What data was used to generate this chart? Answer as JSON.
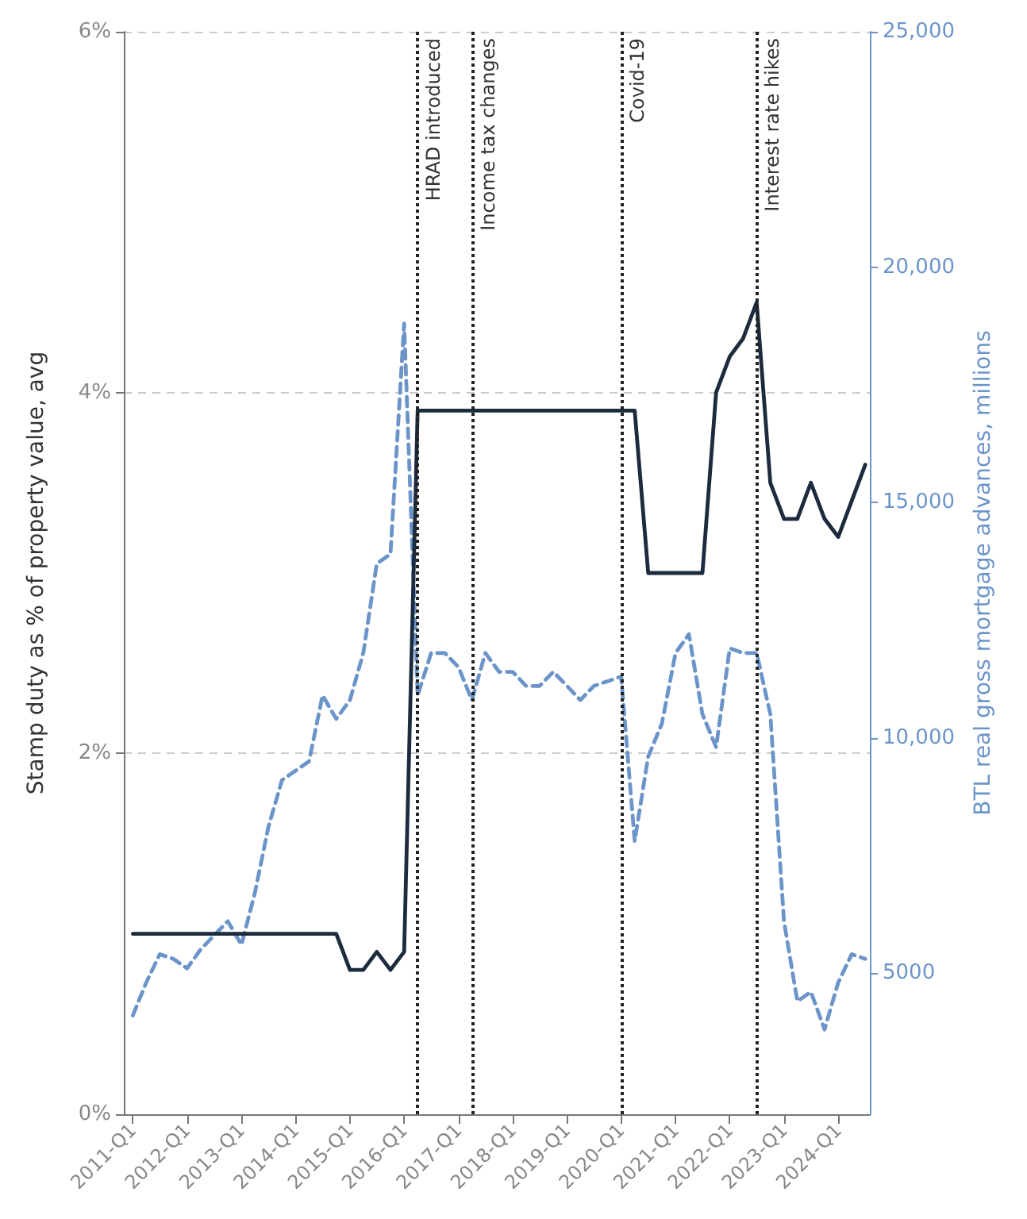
{
  "chart_data": {
    "type": "line",
    "ylabel": "Stamp duty as % of property value, avg",
    "y2label": "BTL real gross mortgage advances, millions",
    "x": [
      "2011-01",
      "2011-04",
      "2011-07",
      "2011-10",
      "2012-01",
      "2012-04",
      "2012-07",
      "2012-10",
      "2013-01",
      "2013-04",
      "2013-07",
      "2013-10",
      "2014-01",
      "2014-04",
      "2014-07",
      "2014-10",
      "2015-01",
      "2015-04",
      "2015-07",
      "2015-10",
      "2016-01",
      "2016-04",
      "2016-07",
      "2016-10",
      "2017-01",
      "2017-04",
      "2017-07",
      "2017-10",
      "2018-01",
      "2018-04",
      "2018-07",
      "2018-10",
      "2019-01",
      "2019-04",
      "2019-07",
      "2019-10",
      "2020-01",
      "2020-04",
      "2020-07",
      "2020-10",
      "2021-01",
      "2021-04",
      "2021-07",
      "2021-10",
      "2022-01",
      "2022-04",
      "2022-07",
      "2022-10",
      "2023-01",
      "2023-04",
      "2023-07",
      "2023-10",
      "2024-01",
      "2024-04",
      "2024-07"
    ],
    "series": [
      {
        "color": "#1c2b3d",
        "line_style": "solid",
        "values": [
          1.0,
          1.0,
          1.0,
          1.0,
          1.0,
          1.0,
          1.0,
          1.0,
          1.0,
          1.0,
          1.0,
          1.0,
          1.0,
          1.0,
          1.0,
          1.0,
          0.8,
          0.8,
          0.9,
          0.8,
          0.9,
          3.9,
          3.9,
          3.9,
          3.9,
          3.9,
          3.9,
          3.9,
          3.9,
          3.9,
          3.9,
          3.9,
          3.9,
          3.9,
          3.9,
          3.9,
          3.9,
          3.9,
          3.0,
          3.0,
          3.0,
          3.0,
          3.0,
          4.0,
          4.2,
          4.3,
          4.5,
          3.5,
          3.3,
          3.3,
          3.5,
          3.3,
          3.2,
          3.4,
          3.6
        ]
      },
      {
        "color": "#6b94c9",
        "line_style": "dashed",
        "axis": "y2",
        "values": [
          4100,
          4800,
          5400,
          5300,
          5100,
          5500,
          5800,
          6100,
          5600,
          6700,
          8100,
          9100,
          9300,
          9500,
          10900,
          10400,
          10800,
          11800,
          13700,
          13900,
          18800,
          10900,
          11800,
          11800,
          11500,
          10800,
          11800,
          11400,
          11400,
          11100,
          11100,
          11400,
          11100,
          10800,
          11100,
          11200,
          11300,
          7800,
          9600,
          10300,
          11800,
          12200,
          10500,
          9800,
          11900,
          11800,
          11800,
          10500,
          6100,
          4400,
          4600,
          3800,
          4800,
          5400,
          5300
        ]
      }
    ],
    "xlim": [
      "2010-11",
      "2024-08"
    ],
    "xticks": [
      {
        "value": "2011-01",
        "label": "2011-Q1"
      },
      {
        "value": "2012-01",
        "label": "2012-Q1"
      },
      {
        "value": "2013-01",
        "label": "2013-Q1"
      },
      {
        "value": "2014-01",
        "label": "2014-Q1"
      },
      {
        "value": "2015-01",
        "label": "2015-Q1"
      },
      {
        "value": "2016-01",
        "label": "2016-Q1"
      },
      {
        "value": "2017-01",
        "label": "2017-Q1"
      },
      {
        "value": "2018-01",
        "label": "2018-Q1"
      },
      {
        "value": "2019-01",
        "label": "2019-Q1"
      },
      {
        "value": "2020-01",
        "label": "2020-Q1"
      },
      {
        "value": "2021-01",
        "label": "2021-Q1"
      },
      {
        "value": "2022-01",
        "label": "2022-Q1"
      },
      {
        "value": "2023-01",
        "label": "2023-Q1"
      },
      {
        "value": "2024-01",
        "label": "2024-Q1"
      }
    ],
    "ylim": [
      0,
      6
    ],
    "yticks": [
      {
        "value": 0,
        "label": "0%"
      },
      {
        "value": 2,
        "label": "2%"
      },
      {
        "value": 4,
        "label": "4%"
      },
      {
        "value": 6,
        "label": "6%"
      }
    ],
    "y2lim": [
      2000,
      25000
    ],
    "y2ticks": [
      {
        "value": 5000,
        "label": "5000"
      },
      {
        "value": 10000,
        "label": "10,000"
      },
      {
        "value": 15000,
        "label": "15,000"
      },
      {
        "value": 20000,
        "label": "20,000"
      },
      {
        "value": 25000,
        "label": "25,000"
      }
    ],
    "ref_lines": [
      {
        "axis": "x",
        "value": "2016-04",
        "label": "HRAD introduced",
        "color": "#222222",
        "line_style": "dotted"
      },
      {
        "axis": "x",
        "value": "2017-04",
        "label": "Income tax changes",
        "color": "#222222",
        "line_style": "dotted"
      },
      {
        "axis": "x",
        "value": "2020-01",
        "label": "Covid-19",
        "color": "#222222",
        "line_style": "dotted"
      },
      {
        "axis": "x",
        "value": "2022-07",
        "label": "Interest rate hikes",
        "color": "#222222",
        "line_style": "dotted"
      }
    ],
    "grid": "y",
    "marker": "none"
  }
}
